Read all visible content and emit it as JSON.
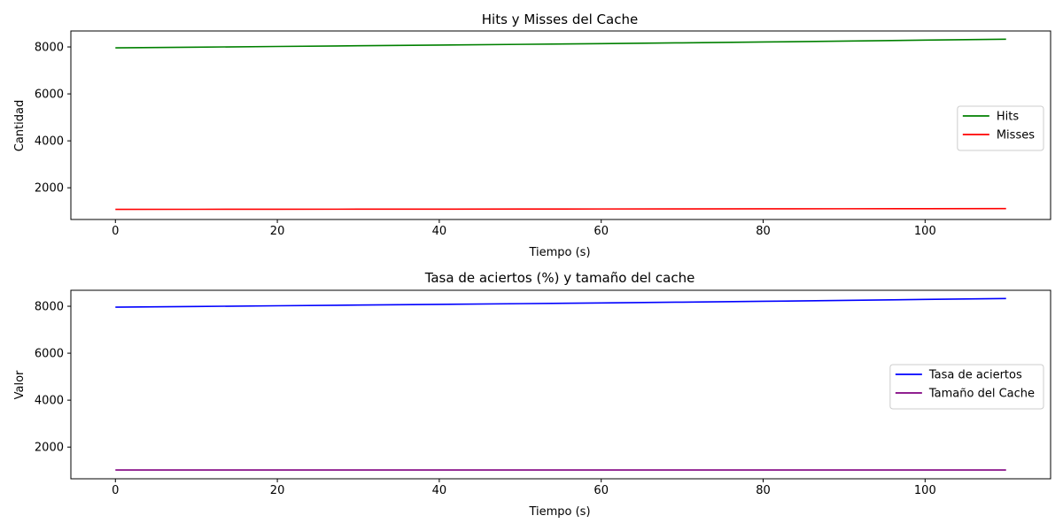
{
  "chart_data": [
    {
      "type": "line",
      "title": "Hits y Misses del Cache",
      "xlabel": "Tiempo (s)",
      "ylabel": "Cantidad",
      "xlim": [
        -5.5,
        115.5
      ],
      "ylim": [
        650,
        8680
      ],
      "x_ticks": [
        0,
        20,
        40,
        60,
        80,
        100
      ],
      "y_ticks": [
        2000,
        4000,
        6000,
        8000
      ],
      "legend_position": "center-right",
      "x": [
        0,
        10,
        20,
        30,
        40,
        50,
        60,
        70,
        80,
        90,
        100,
        110
      ],
      "series": [
        {
          "name": "Hits",
          "color": "#008000",
          "values": [
            7960,
            7990,
            8020,
            8050,
            8080,
            8110,
            8140,
            8175,
            8210,
            8250,
            8290,
            8330
          ]
        },
        {
          "name": "Misses",
          "color": "#ff0000",
          "values": [
            1080,
            1083,
            1086,
            1089,
            1092,
            1095,
            1098,
            1101,
            1104,
            1107,
            1110,
            1113
          ]
        }
      ]
    },
    {
      "type": "line",
      "title": "Tasa de aciertos (%) y tamaño del cache",
      "xlabel": "Tiempo (s)",
      "ylabel": "Valor",
      "xlim": [
        -5.5,
        115.5
      ],
      "ylim": [
        650,
        8680
      ],
      "x_ticks": [
        0,
        20,
        40,
        60,
        80,
        100
      ],
      "y_ticks": [
        2000,
        4000,
        6000,
        8000
      ],
      "legend_position": "center-right",
      "x": [
        0,
        10,
        20,
        30,
        40,
        50,
        60,
        70,
        80,
        90,
        100,
        110
      ],
      "series": [
        {
          "name": "Tasa de aciertos",
          "color": "#0000ff",
          "values": [
            7960,
            7990,
            8020,
            8050,
            8080,
            8110,
            8140,
            8175,
            8210,
            8250,
            8290,
            8330
          ]
        },
        {
          "name": "Tamaño del Cache",
          "color": "#800080",
          "values": [
            1024,
            1024,
            1024,
            1024,
            1024,
            1024,
            1024,
            1024,
            1024,
            1024,
            1024,
            1024
          ]
        }
      ]
    }
  ]
}
